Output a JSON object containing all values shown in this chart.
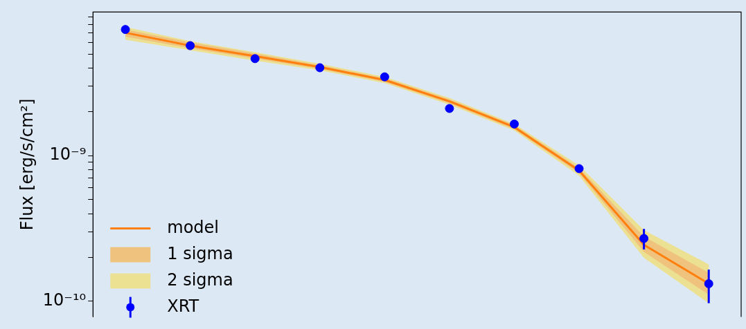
{
  "chart_data": {
    "type": "scatter",
    "ylabel": "Flux [erg/s/cm²]",
    "log": "y",
    "legend": "bottom left",
    "grid": false,
    "categories": [
      null,
      null,
      null,
      null,
      null,
      null,
      null,
      null,
      null,
      null
    ],
    "ylim": [
      7.8e-11,
      9.7e-09
    ],
    "yticks": [
      {
        "value": 1e-10,
        "label": "10⁻¹⁰"
      },
      {
        "value": 2e-10,
        "label": null
      },
      {
        "value": 3e-10,
        "label": null
      },
      {
        "value": 4e-10,
        "label": null
      },
      {
        "value": 5e-10,
        "label": null
      },
      {
        "value": 6e-10,
        "label": null
      },
      {
        "value": 7e-10,
        "label": null
      },
      {
        "value": 8e-10,
        "label": null
      },
      {
        "value": 9e-10,
        "label": null
      },
      {
        "value": 1e-09,
        "label": "10⁻⁹"
      },
      {
        "value": 2e-09,
        "label": null
      },
      {
        "value": 3e-09,
        "label": null
      },
      {
        "value": 4e-09,
        "label": null
      },
      {
        "value": 5e-09,
        "label": null
      },
      {
        "value": 6e-09,
        "label": null
      },
      {
        "value": 7e-09,
        "label": null
      },
      {
        "value": 8e-09,
        "label": null
      },
      {
        "value": 9e-09,
        "label": null
      }
    ],
    "series": [
      {
        "name": "model",
        "type": "line",
        "color": "#ff7f0e",
        "values": [
          6.99e-09,
          5.7e-09,
          4.83e-09,
          4.06e-09,
          3.31e-09,
          2.36e-09,
          1.57e-09,
          7.9e-10,
          2.44e-10,
          1.32e-10
        ]
      },
      {
        "name": "1 sigma",
        "type": "area",
        "color": "#efc37e",
        "values": [
          null,
          null,
          null,
          null,
          null,
          null,
          null,
          null,
          null,
          null
        ],
        "lower": [
          6.57e-09,
          5.47e-09,
          4.64e-09,
          3.94e-09,
          3.21e-09,
          2.29e-09,
          1.52e-09,
          7.59e-10,
          2.18e-10,
          1.11e-10
        ],
        "upper": [
          7.36e-09,
          6e-09,
          5.04e-09,
          4.19e-09,
          3.41e-09,
          2.44e-09,
          1.62e-09,
          8.24e-10,
          2.78e-10,
          1.57e-10
        ]
      },
      {
        "name": "2 sigma",
        "type": "area",
        "color": "#ece192",
        "values": [
          null,
          null,
          null,
          null,
          null,
          null,
          null,
          null,
          null,
          null
        ],
        "lower": [
          6.25e-09,
          5.3e-09,
          4.5e-09,
          3.86e-09,
          3.15e-09,
          2.24e-09,
          1.49e-09,
          7.28e-10,
          1.99e-10,
          9.7e-11
        ],
        "upper": [
          7.66e-09,
          6.12e-09,
          5.14e-09,
          4.28e-09,
          3.48e-09,
          2.49e-09,
          1.65e-09,
          8.58e-10,
          3.08e-10,
          1.79e-10
        ]
      },
      {
        "name": "XRT",
        "color": "#0000ff",
        "marker": "circle",
        "values": [
          7.36e-09,
          5.7e-09,
          4.64e-09,
          4.02e-09,
          3.48e-09,
          2.11e-09,
          1.65e-09,
          8.15e-10,
          2.7e-10,
          1.32e-10
        ],
        "errors": [
          null,
          null,
          null,
          null,
          null,
          null,
          null,
          null,
          [
            2.27e-10,
            3.14e-10
          ],
          [
            9.7e-11,
            1.65e-10
          ]
        ]
      }
    ]
  }
}
